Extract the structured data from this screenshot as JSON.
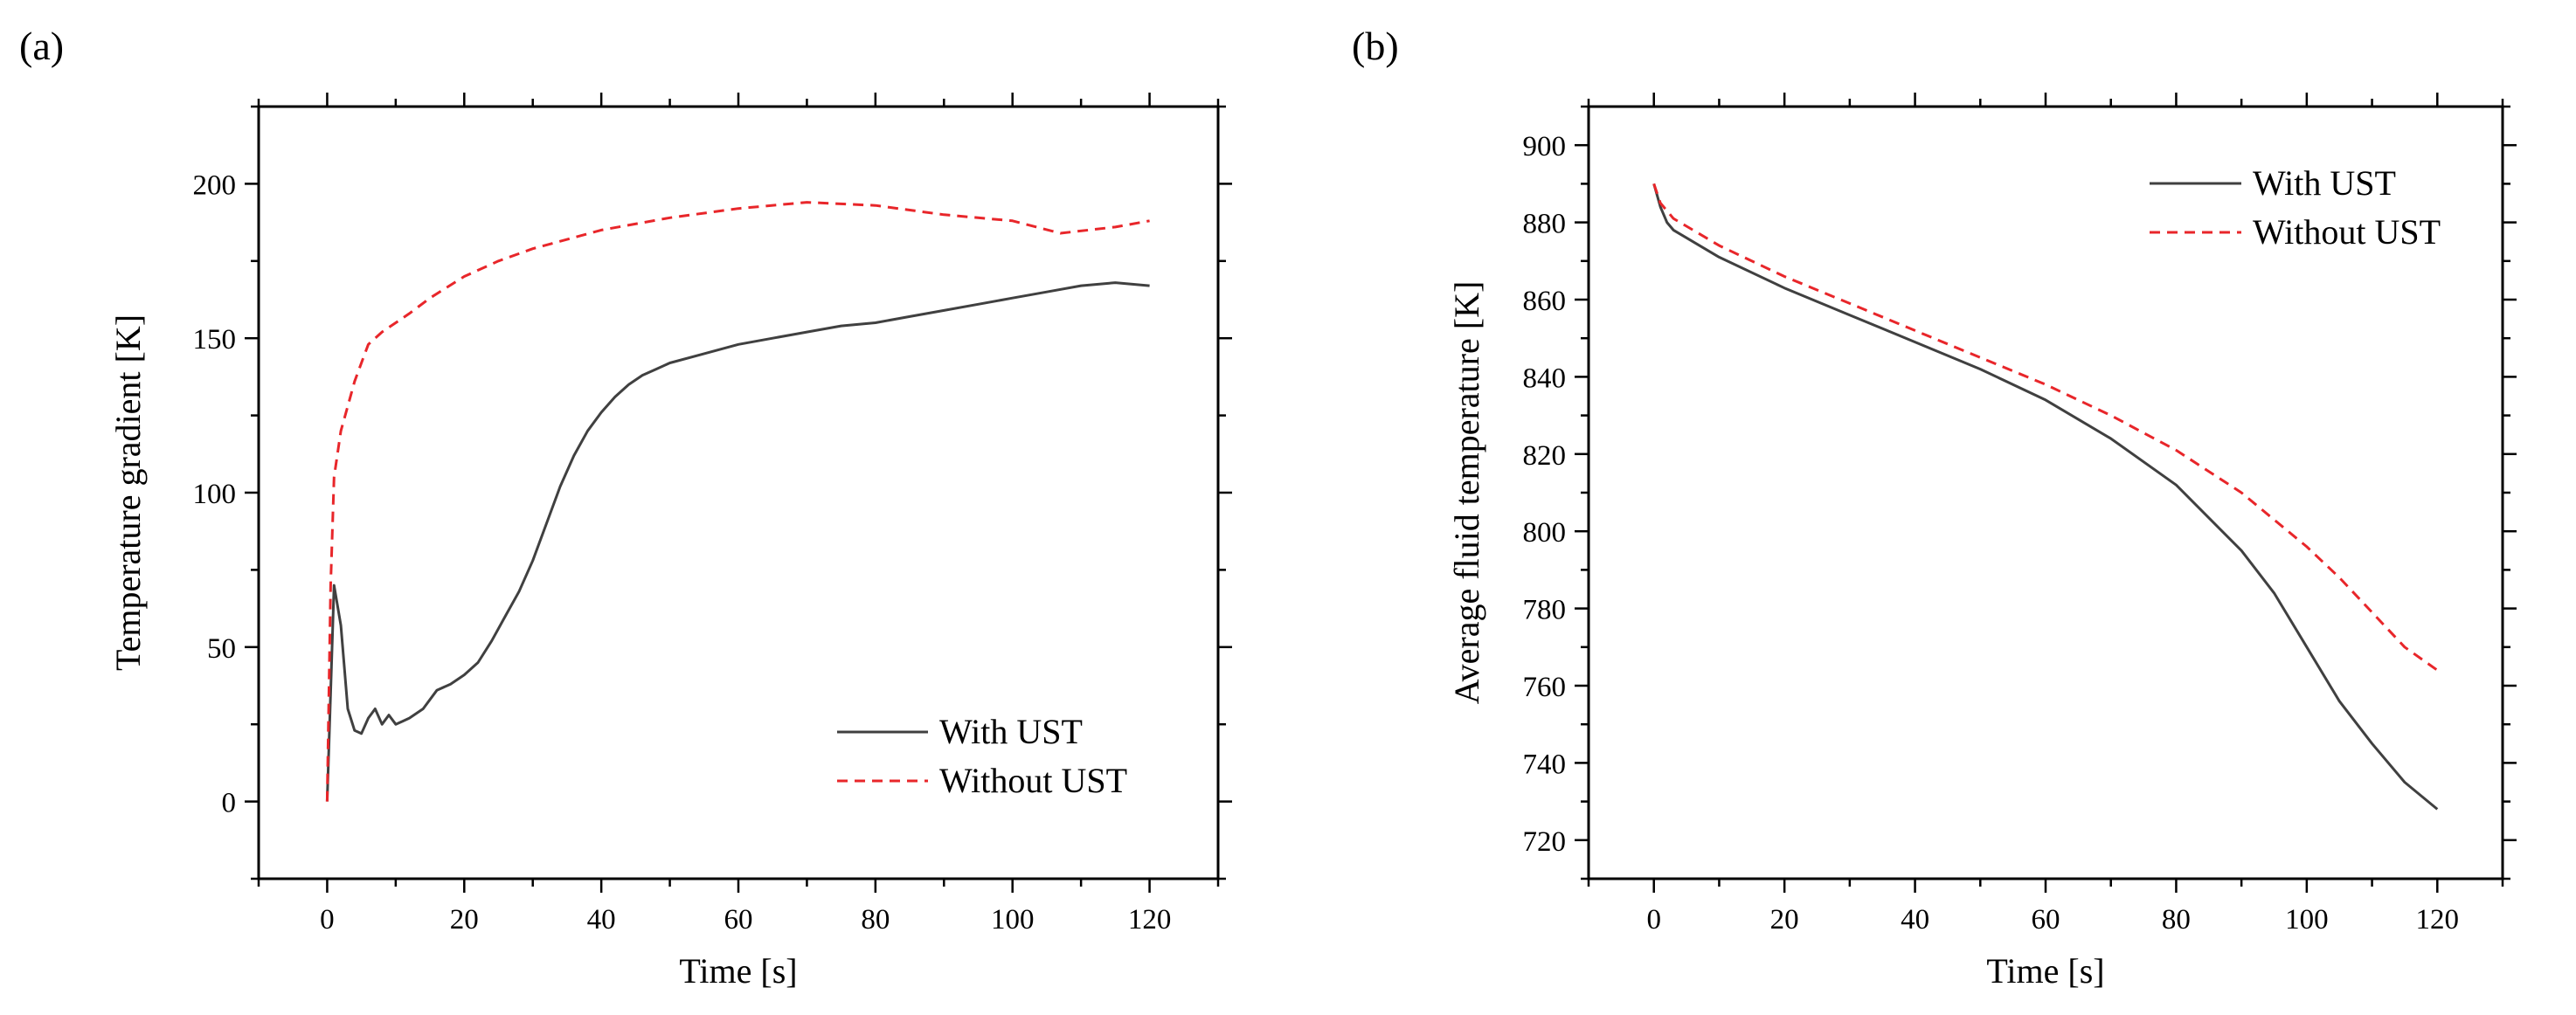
{
  "chart_data": [
    {
      "panel_label": "(a)",
      "type": "line",
      "xlabel": "Time [s]",
      "ylabel": "Temperature gradient [K]",
      "xlim": [
        -10,
        130
      ],
      "ylim": [
        -25,
        225
      ],
      "xticks": [
        0,
        20,
        40,
        60,
        80,
        100,
        120
      ],
      "yticks": [
        0,
        50,
        100,
        150,
        200
      ],
      "legend_position": "bottom-right",
      "series": [
        {
          "name": "With UST",
          "color": "#404040",
          "style": "solid",
          "x": [
            0,
            1,
            2,
            3,
            4,
            5,
            6,
            7,
            8,
            9,
            10,
            11,
            12,
            14,
            16,
            18,
            20,
            22,
            24,
            26,
            28,
            30,
            32,
            34,
            36,
            38,
            40,
            42,
            44,
            46,
            48,
            50,
            55,
            60,
            65,
            70,
            75,
            80,
            85,
            90,
            95,
            100,
            105,
            110,
            115,
            120
          ],
          "y": [
            0,
            70,
            57,
            30,
            23,
            22,
            27,
            30,
            25,
            28,
            25,
            26,
            27,
            30,
            36,
            38,
            41,
            45,
            52,
            60,
            68,
            78,
            90,
            102,
            112,
            120,
            126,
            131,
            135,
            138,
            140,
            142,
            145,
            148,
            150,
            152,
            154,
            155,
            157,
            159,
            161,
            163,
            165,
            167,
            168,
            167
          ]
        },
        {
          "name": "Without UST",
          "color": "#e8262a",
          "style": "dashed",
          "x": [
            0,
            0.5,
            1,
            2,
            3,
            4,
            5,
            6,
            8,
            10,
            12,
            15,
            20,
            25,
            30,
            40,
            50,
            60,
            70,
            80,
            90,
            100,
            107,
            115,
            120
          ],
          "y": [
            0,
            70,
            105,
            120,
            128,
            136,
            142,
            148,
            152,
            155,
            158,
            163,
            170,
            175,
            179,
            185,
            189,
            192,
            194,
            193,
            190,
            188,
            184,
            186,
            188
          ]
        }
      ]
    },
    {
      "panel_label": "(b)",
      "type": "line",
      "xlabel": "Time [s]",
      "ylabel": "Average fluid temperature [K]",
      "xlim": [
        -10,
        130
      ],
      "ylim": [
        710,
        910
      ],
      "xticks": [
        0,
        20,
        40,
        60,
        80,
        100,
        120
      ],
      "yticks": [
        720,
        740,
        760,
        780,
        800,
        820,
        840,
        860,
        880,
        900
      ],
      "legend_position": "top-right",
      "series": [
        {
          "name": "With UST",
          "color": "#404040",
          "style": "solid",
          "x": [
            0,
            1,
            2,
            3,
            5,
            10,
            20,
            30,
            40,
            50,
            60,
            70,
            80,
            90,
            95,
            100,
            105,
            110,
            115,
            120
          ],
          "y": [
            890,
            884,
            880,
            878,
            876,
            871,
            863,
            856,
            849,
            842,
            834,
            824,
            812,
            795,
            784,
            770,
            756,
            745,
            735,
            728
          ]
        },
        {
          "name": "Without UST",
          "color": "#e8262a",
          "style": "dashed",
          "x": [
            0,
            1,
            2,
            3,
            5,
            10,
            20,
            30,
            40,
            50,
            60,
            70,
            80,
            90,
            100,
            105,
            110,
            115,
            120
          ],
          "y": [
            890,
            885,
            883,
            881,
            879,
            874,
            866,
            859,
            852,
            845,
            838,
            830,
            821,
            810,
            796,
            788,
            779,
            770,
            764
          ]
        }
      ]
    }
  ]
}
